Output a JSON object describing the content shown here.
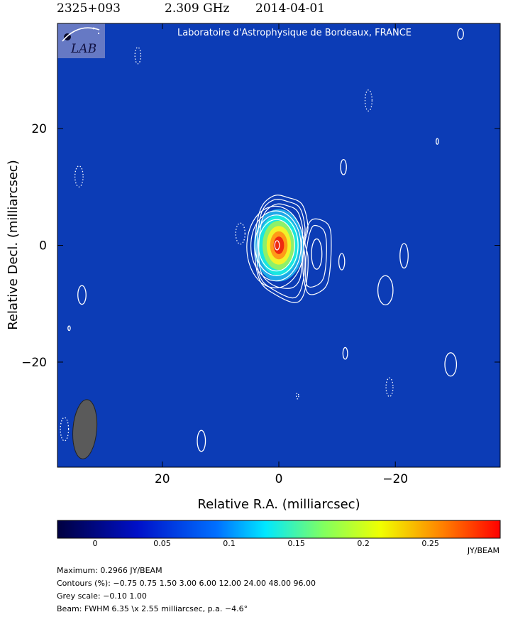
{
  "header": {
    "source": "2325+093",
    "frequency": "2.309 GHz",
    "date": "2014-04-01"
  },
  "chart_data": {
    "type": "contour",
    "title": "Laboratoire d'Astrophysique de Bordeaux, FRANCE",
    "logo_text": "LAB",
    "xlabel": "Relative R.A. (milliarcsec)",
    "ylabel": "Relative Decl. (milliarcsec)",
    "xlim": [
      38,
      -38
    ],
    "ylim": [
      -38,
      38
    ],
    "x_ticks": [
      {
        "value": 20,
        "label": "20"
      },
      {
        "value": 0,
        "label": "0"
      },
      {
        "value": -20,
        "label": "−20"
      }
    ],
    "y_ticks": [
      {
        "value": 20,
        "label": "20"
      },
      {
        "value": 0,
        "label": "0"
      },
      {
        "value": -20,
        "label": "−20"
      }
    ],
    "background_color": "#0c3cb6",
    "contour_color": "#ffffff",
    "peak": {
      "x": 0,
      "y": 0,
      "value": 0.2966
    },
    "core_color_layers": [
      {
        "level": 0.03,
        "color": "#1fa8e8",
        "rx": 4.3,
        "ry": 6.2
      },
      {
        "level": 0.08,
        "color": "#19e6e0",
        "rx": 3.5,
        "ry": 5.2
      },
      {
        "level": 0.13,
        "color": "#8ef06a",
        "rx": 2.8,
        "ry": 4.2
      },
      {
        "level": 0.18,
        "color": "#f2f22a",
        "rx": 2.1,
        "ry": 3.3
      },
      {
        "level": 0.22,
        "color": "#ff9a18",
        "rx": 1.5,
        "ry": 2.4
      },
      {
        "level": 0.26,
        "color": "#ee2a10",
        "rx": 0.9,
        "ry": 1.5
      }
    ],
    "core_contours": [
      {
        "x": 0.4,
        "y": 0,
        "rx": 3.1,
        "ry": 4.4
      },
      {
        "x": 0.4,
        "y": 0,
        "rx": 3.7,
        "ry": 5.2
      },
      {
        "x": 0.5,
        "y": -0.1,
        "rx": 4.3,
        "ry": 6.0
      },
      {
        "x": 0.6,
        "y": -0.3,
        "rx": 4.9,
        "ry": 7.0
      },
      {
        "x": 0.3,
        "y": 0,
        "rx": 0.4,
        "ry": 0.8
      }
    ],
    "extended_contours": [
      [
        [
          -1.5,
          8.2
        ],
        [
          -4.0,
          7.0
        ],
        [
          -5.0,
          3.2
        ],
        [
          -4.5,
          0.5
        ],
        [
          -5.0,
          -2.0
        ],
        [
          -4.8,
          -6.0
        ],
        [
          -4.0,
          -9.0
        ],
        [
          -2.5,
          -9.8
        ],
        [
          0.5,
          -8.5
        ],
        [
          3.0,
          -6.5
        ],
        [
          4.0,
          -3.0
        ],
        [
          4.0,
          2.0
        ],
        [
          3.0,
          6.5
        ],
        [
          0.8,
          8.5
        ]
      ],
      [
        [
          -1.5,
          7.5
        ],
        [
          -3.6,
          6.4
        ],
        [
          -4.5,
          3.0
        ],
        [
          -4.2,
          0.5
        ],
        [
          -4.5,
          -2.2
        ],
        [
          -4.3,
          -5.4
        ],
        [
          -3.5,
          -8.2
        ],
        [
          -2.2,
          -9.0
        ],
        [
          0.6,
          -7.8
        ],
        [
          2.9,
          -6.0
        ],
        [
          3.7,
          -3.0
        ],
        [
          3.6,
          2.0
        ],
        [
          2.8,
          6.0
        ],
        [
          0.8,
          7.8
        ]
      ],
      [
        [
          -1.4,
          6.8
        ],
        [
          -3.2,
          5.8
        ],
        [
          -4.1,
          2.8
        ],
        [
          -3.9,
          0.4
        ],
        [
          -4.0,
          -2.6
        ],
        [
          -3.6,
          -5.8
        ],
        [
          -2.2,
          -7.3
        ],
        [
          0.6,
          -7.0
        ],
        [
          2.7,
          -5.3
        ],
        [
          3.4,
          -2.7
        ],
        [
          3.3,
          1.8
        ],
        [
          2.5,
          5.4
        ],
        [
          0.6,
          7.0
        ]
      ],
      [
        [
          -6.0,
          4.5
        ],
        [
          -8.5,
          3.5
        ],
        [
          -9.0,
          0.0
        ],
        [
          -8.5,
          -6.0
        ],
        [
          -7.0,
          -8.0
        ],
        [
          -5.0,
          -8.2
        ],
        [
          -4.2,
          -5.0
        ],
        [
          -4.2,
          -1.5
        ],
        [
          -4.8,
          2.8
        ]
      ],
      [
        [
          -6.2,
          3.4
        ],
        [
          -7.8,
          2.4
        ],
        [
          -8.2,
          -1.0
        ],
        [
          -7.7,
          -5.5
        ],
        [
          -6.2,
          -7.0
        ],
        [
          -4.8,
          -6.8
        ],
        [
          -4.6,
          -4.0
        ],
        [
          -4.8,
          -0.5
        ],
        [
          -5.4,
          2.4
        ]
      ]
    ],
    "island_contours": [
      {
        "x": -6.5,
        "y": -1.5,
        "rx": 0.9,
        "ry": 2.6,
        "dashed": false
      },
      {
        "x": -10.8,
        "y": -2.8,
        "rx": 0.5,
        "ry": 1.4,
        "dashed": false
      },
      {
        "x": -11.1,
        "y": 13.4,
        "rx": 0.5,
        "ry": 1.3,
        "dashed": false
      },
      {
        "x": -21.5,
        "y": -1.8,
        "rx": 0.7,
        "ry": 2.1,
        "dashed": false
      },
      {
        "x": -18.3,
        "y": -7.7,
        "rx": 1.3,
        "ry": 2.5,
        "dashed": false
      },
      {
        "x": -11.4,
        "y": -18.5,
        "rx": 0.4,
        "ry": 1.0,
        "dashed": false
      },
      {
        "x": -29.5,
        "y": -20.4,
        "rx": 1.0,
        "ry": 2.0,
        "dashed": false
      },
      {
        "x": -31.2,
        "y": 36.2,
        "rx": 0.5,
        "ry": 0.9,
        "dashed": false
      },
      {
        "x": -27.2,
        "y": 17.8,
        "rx": 0.2,
        "ry": 0.5,
        "dashed": false
      },
      {
        "x": 33.8,
        "y": -8.5,
        "rx": 0.7,
        "ry": 1.6,
        "dashed": false
      },
      {
        "x": 13.3,
        "y": -33.5,
        "rx": 0.7,
        "ry": 1.8,
        "dashed": false
      },
      {
        "x": 36.0,
        "y": -14.2,
        "rx": 0.2,
        "ry": 0.4,
        "dashed": false
      },
      {
        "x": 24.2,
        "y": 32.5,
        "rx": 0.5,
        "ry": 1.4,
        "dashed": true
      },
      {
        "x": 34.3,
        "y": 11.8,
        "rx": 0.7,
        "ry": 1.8,
        "dashed": true
      },
      {
        "x": 6.6,
        "y": 2.0,
        "rx": 0.8,
        "ry": 1.8,
        "dashed": true
      },
      {
        "x": -15.4,
        "y": 24.8,
        "rx": 0.6,
        "ry": 1.8,
        "dashed": true
      },
      {
        "x": -19.0,
        "y": -24.3,
        "rx": 0.6,
        "ry": 1.6,
        "dashed": true
      },
      {
        "x": -3.2,
        "y": -25.8,
        "rx": 0.2,
        "ry": 0.5,
        "dashed": true
      },
      {
        "x": 36.8,
        "y": -31.5,
        "rx": 0.7,
        "ry": 2.0,
        "dashed": true
      }
    ],
    "beam": {
      "x": 33.3,
      "y": -31.5,
      "fwhm_major": 6.35,
      "fwhm_minor": 2.55,
      "pa_deg": -4.6,
      "color": "#5a5a5a"
    },
    "colorbar": {
      "range": [
        -0.028,
        0.302
      ],
      "ticks": [
        {
          "value": 0,
          "label": "0"
        },
        {
          "value": 0.05,
          "label": "0.05"
        },
        {
          "value": 0.1,
          "label": "0.1"
        },
        {
          "value": 0.15,
          "label": "0.15"
        },
        {
          "value": 0.2,
          "label": "0.2"
        },
        {
          "value": 0.25,
          "label": "0.25"
        }
      ],
      "unit": "JY/BEAM",
      "stops": [
        {
          "pos": 0.0,
          "color": "#000040"
        },
        {
          "pos": 0.18,
          "color": "#0010c8"
        },
        {
          "pos": 0.36,
          "color": "#0070ff"
        },
        {
          "pos": 0.47,
          "color": "#00e8ff"
        },
        {
          "pos": 0.6,
          "color": "#80ff60"
        },
        {
          "pos": 0.73,
          "color": "#f0ff00"
        },
        {
          "pos": 0.87,
          "color": "#ff8000"
        },
        {
          "pos": 1.0,
          "color": "#ff0000"
        }
      ]
    }
  },
  "footer": {
    "maximum": "Maximum: 0.2966 JY/BEAM",
    "contours": "Contours (%): −0.75 0.75 1.50 3.00 6.00 12.00 24.00 48.00 96.00",
    "grey_scale": "Grey scale: −0.10 1.00",
    "beam": "Beam: FWHM 6.35 \\x 2.55 milliarcsec, p.a. −4.6°"
  }
}
